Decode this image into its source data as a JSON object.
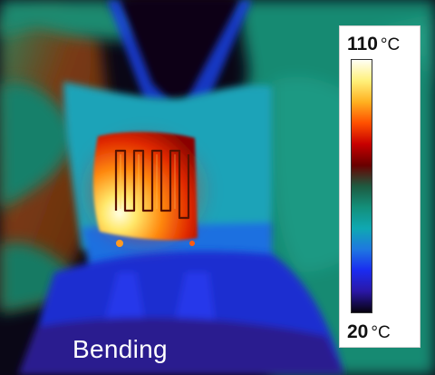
{
  "color_scale": {
    "max_value": "110",
    "min_value": "20",
    "unit": "°C",
    "gradient_stops": [
      "#fffff5",
      "#fff07a",
      "#ffb020",
      "#ff5000",
      "#c80000",
      "#6a0000",
      "#1e5a40",
      "#138f7a",
      "#0fa8b2",
      "#1e78e0",
      "#1a2cf0",
      "#2a17a6",
      "#07020e"
    ]
  },
  "caption": "Bending"
}
